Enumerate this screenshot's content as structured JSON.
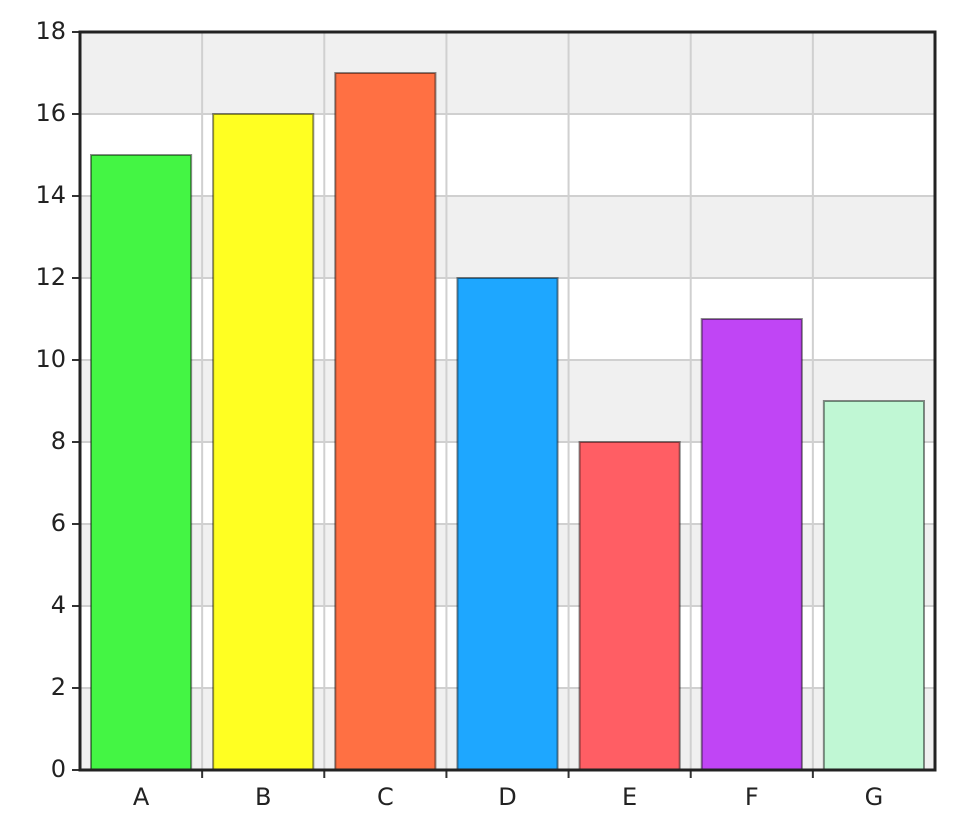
{
  "chart_data": {
    "type": "bar",
    "categories": [
      "A",
      "B",
      "C",
      "D",
      "E",
      "F",
      "G"
    ],
    "values": [
      15,
      16,
      17,
      12,
      8,
      11,
      9
    ],
    "colors": [
      "#44f544",
      "#ffff22",
      "#ff7043",
      "#1ea7ff",
      "#ff5e64",
      "#c045f5",
      "#c0f7d4"
    ],
    "ylim": [
      0,
      18
    ],
    "yticks": [
      0,
      2,
      4,
      6,
      8,
      10,
      12,
      14,
      16,
      18
    ],
    "grid": true
  }
}
